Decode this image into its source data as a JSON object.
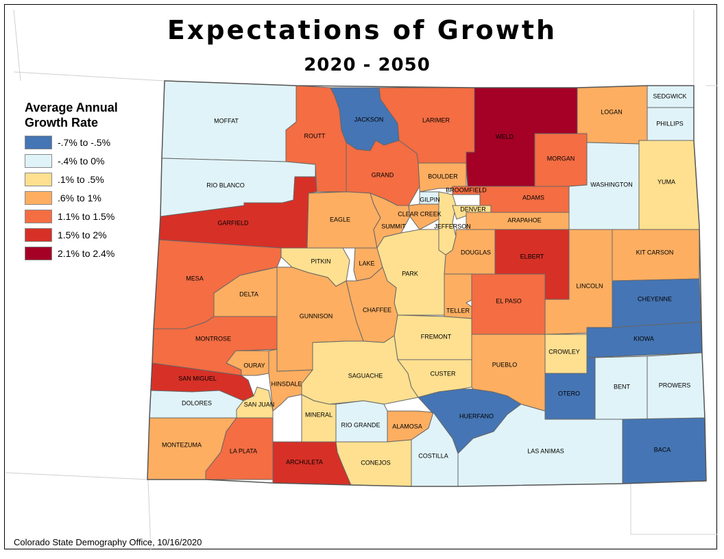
{
  "title": "Expectations of Growth",
  "subtitle": "2020 - 2050",
  "legend": {
    "title": "Average Annual\nGrowth Rate",
    "items": [
      {
        "key": "c1",
        "label": "-.7% to -.5%",
        "color": "#4575b4"
      },
      {
        "key": "c2",
        "label": "-.4% to 0%",
        "color": "#e0f3f8"
      },
      {
        "key": "c3",
        "label": ".1% to .5%",
        "color": "#fee090"
      },
      {
        "key": "c4",
        "label": ".6% to 1%",
        "color": "#fdae61"
      },
      {
        "key": "c5",
        "label": "1.1% to 1.5%",
        "color": "#f46d43"
      },
      {
        "key": "c6",
        "label": "1.5% to 2%",
        "color": "#d73027"
      },
      {
        "key": "c7",
        "label": "2.1% to 2.4%",
        "color": "#a50026"
      }
    ]
  },
  "credit": "Colorado State Demography Office, 10/16/2020",
  "counties": [
    {
      "name": "MOFFAT",
      "class": "c2"
    },
    {
      "name": "JACKSON",
      "class": "c1"
    },
    {
      "name": "LARIMER",
      "class": "c5"
    },
    {
      "name": "WELD",
      "class": "c7"
    },
    {
      "name": "LOGAN",
      "class": "c4"
    },
    {
      "name": "SEDGWICK",
      "class": "c2"
    },
    {
      "name": "PHILLIPS",
      "class": "c2"
    },
    {
      "name": "ROUTT",
      "class": "c5"
    },
    {
      "name": "RIO BLANCO",
      "class": "c2"
    },
    {
      "name": "GRAND",
      "class": "c5"
    },
    {
      "name": "BOULDER",
      "class": "c4"
    },
    {
      "name": "BROOMFIELD",
      "class": "c5"
    },
    {
      "name": "MORGAN",
      "class": "c5"
    },
    {
      "name": "WASHINGTON",
      "class": "c2"
    },
    {
      "name": "YUMA",
      "class": "c3"
    },
    {
      "name": "GARFIELD",
      "class": "c6"
    },
    {
      "name": "EAGLE",
      "class": "c4"
    },
    {
      "name": "SUMMIT",
      "class": "c4"
    },
    {
      "name": "GILPIN",
      "class": "c2"
    },
    {
      "name": "CLEAR CREEK",
      "class": "c4"
    },
    {
      "name": "JEFFERSON",
      "class": "c3"
    },
    {
      "name": "DENVER",
      "class": "c3"
    },
    {
      "name": "ADAMS",
      "class": "c5"
    },
    {
      "name": "ARAPAHOE",
      "class": "c4"
    },
    {
      "name": "DOUGLAS",
      "class": "c4"
    },
    {
      "name": "ELBERT",
      "class": "c6"
    },
    {
      "name": "KIT CARSON",
      "class": "c4"
    },
    {
      "name": "MESA",
      "class": "c5"
    },
    {
      "name": "PITKIN",
      "class": "c3"
    },
    {
      "name": "LAKE",
      "class": "c4"
    },
    {
      "name": "PARK",
      "class": "c3"
    },
    {
      "name": "DELTA",
      "class": "c4"
    },
    {
      "name": "CHAFFEE",
      "class": "c4"
    },
    {
      "name": "TELLER",
      "class": "c4"
    },
    {
      "name": "EL PASO",
      "class": "c5"
    },
    {
      "name": "LINCOLN",
      "class": "c4"
    },
    {
      "name": "CHEYENNE",
      "class": "c1"
    },
    {
      "name": "GUNNISON",
      "class": "c4"
    },
    {
      "name": "FREMONT",
      "class": "c3"
    },
    {
      "name": "KIOWA",
      "class": "c1"
    },
    {
      "name": "MONTROSE",
      "class": "c5"
    },
    {
      "name": "OURAY",
      "class": "c4"
    },
    {
      "name": "CROWLEY",
      "class": "c3"
    },
    {
      "name": "SAN MIGUEL",
      "class": "c6"
    },
    {
      "name": "HINSDALE",
      "class": "c4"
    },
    {
      "name": "SAGUACHE",
      "class": "c3"
    },
    {
      "name": "CUSTER",
      "class": "c3"
    },
    {
      "name": "PUEBLO",
      "class": "c4"
    },
    {
      "name": "OTERO",
      "class": "c1"
    },
    {
      "name": "BENT",
      "class": "c2"
    },
    {
      "name": "PROWERS",
      "class": "c2"
    },
    {
      "name": "DOLORES",
      "class": "c2"
    },
    {
      "name": "SAN JUAN",
      "class": "c3"
    },
    {
      "name": "MINERAL",
      "class": "c3"
    },
    {
      "name": "RIO GRANDE",
      "class": "c2"
    },
    {
      "name": "ALAMOSA",
      "class": "c4"
    },
    {
      "name": "HUERFANO",
      "class": "c1"
    },
    {
      "name": "MONTEZUMA",
      "class": "c4"
    },
    {
      "name": "LA PLATA",
      "class": "c5"
    },
    {
      "name": "ARCHULETA",
      "class": "c6"
    },
    {
      "name": "CONEJOS",
      "class": "c3"
    },
    {
      "name": "COSTILLA",
      "class": "c2"
    },
    {
      "name": "LAS ANIMAS",
      "class": "c2"
    },
    {
      "name": "BACA",
      "class": "c1"
    }
  ]
}
